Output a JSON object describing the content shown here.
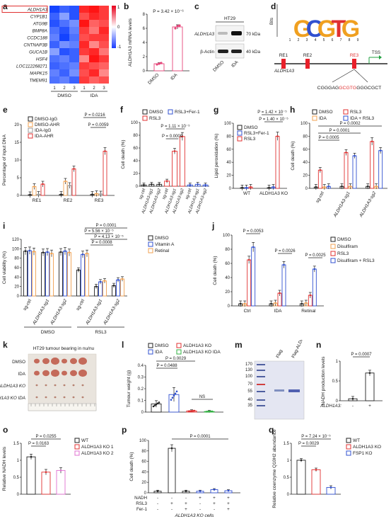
{
  "panel_letters": [
    "a",
    "b",
    "c",
    "d",
    "e",
    "f",
    "g",
    "h",
    "i",
    "j",
    "k",
    "l",
    "m",
    "n",
    "o",
    "p",
    "q"
  ],
  "chart_data": [
    {
      "panel": "a",
      "type": "heatmap",
      "rows": [
        "ALDH1A3",
        "CYP1B1",
        "ATG9B",
        "BMP8A",
        "CCDC188",
        "CNTNAP3B",
        "GUCA1B",
        "HSF4",
        "LOC112268271",
        "MAPK15",
        "TMEM91"
      ],
      "highlight_row": "ALDH1A3",
      "columns": [
        "1",
        "2",
        "3",
        "1",
        "2",
        "3"
      ],
      "groups": [
        "DMSO",
        "IDA"
      ],
      "colorbar_ticks": [
        "1",
        "0",
        "-1"
      ],
      "values": [
        [
          -1.2,
          -1.0,
          -1.1,
          1.1,
          1.2,
          1.0
        ],
        [
          -1.0,
          -0.6,
          -1.1,
          0.9,
          1.1,
          1.0
        ],
        [
          -1.1,
          -0.9,
          -0.7,
          1.2,
          0.8,
          0.9
        ],
        [
          -0.9,
          -1.1,
          -0.8,
          1.0,
          0.7,
          1.1
        ],
        [
          -0.8,
          -1.2,
          -0.9,
          0.9,
          1.0,
          1.0
        ],
        [
          -1.0,
          -0.7,
          -0.8,
          1.1,
          0.6,
          0.9
        ],
        [
          -0.6,
          -1.1,
          -1.0,
          1.0,
          1.1,
          0.7
        ],
        [
          -0.9,
          -0.8,
          -1.0,
          0.6,
          1.2,
          1.0
        ],
        [
          -1.0,
          -0.9,
          -0.8,
          1.0,
          0.9,
          0.8
        ],
        [
          -0.8,
          -1.0,
          -0.7,
          0.9,
          1.1,
          0.6
        ],
        [
          -0.9,
          -0.8,
          -1.0,
          1.0,
          0.8,
          0.9
        ]
      ]
    },
    {
      "panel": "b",
      "type": "bar",
      "ylabel": "ALDH1A3 mRNA levels",
      "categories": [
        "DMSO",
        "IDA"
      ],
      "values": [
        1.0,
        6.2
      ],
      "errors": [
        0.15,
        0.3
      ],
      "points": [
        [
          0.9,
          1.0,
          1.1
        ],
        [
          6.0,
          6.3,
          6.4
        ]
      ],
      "ylim": [
        0,
        8
      ],
      "yticks": [
        0,
        2,
        4,
        6,
        8
      ],
      "colors": [
        "#e8457a",
        "#e8457a"
      ],
      "annotation": "P = 3.42 × 10⁻⁶"
    },
    {
      "panel": "c",
      "type": "blot",
      "cell_line": "HT29",
      "rows": [
        "ALDH1A3",
        "β-Actin"
      ],
      "sizes": [
        "70 kDa",
        "40 kDa"
      ],
      "lanes": [
        "DMSO",
        "IDA"
      ]
    },
    {
      "panel": "d",
      "type": "motif",
      "motif_ylabel": "Bits",
      "motif_letters": [
        "G",
        "C",
        "G",
        "T",
        "G"
      ],
      "elements": [
        "RE1",
        "RE2",
        "RE3"
      ],
      "highlight_element": "RE3",
      "gene": "ALDH1A3",
      "tss": "TSS",
      "sequence_left": "CGGGAG",
      "sequence_motif": "GCGTG",
      "sequence_right": "GGGCGCT"
    },
    {
      "panel": "e",
      "type": "bar",
      "ylabel": "Percentage of input DNA",
      "categories": [
        "RE1",
        "RE2",
        "RE3"
      ],
      "series": [
        {
          "name": "DMSO-IgG",
          "color": "#222222",
          "values": [
            0.2,
            0.3,
            0.3
          ]
        },
        {
          "name": "DMSO-AHR",
          "color": "#f0a050",
          "values": [
            2.5,
            4.0,
            0.5
          ]
        },
        {
          "name": "IDA-IgG",
          "color": "#999999",
          "values": [
            0.3,
            2.8,
            0.4
          ]
        },
        {
          "name": "IDA-AHR",
          "color": "#e03030",
          "values": [
            3.2,
            7.5,
            12.5
          ]
        }
      ],
      "ylim": [
        0,
        20
      ],
      "yticks": [
        0,
        5,
        10,
        15,
        20
      ],
      "annotations": [
        "P = 0.0216",
        "P = 0.0059"
      ]
    },
    {
      "panel": "f",
      "type": "bar",
      "ylabel": "Cell death (%)",
      "categories": [
        "sg-ctrl",
        "ALDH1A3-sg1",
        "ALDH1A3-sg2",
        "sg-ctrl",
        "ALDH1A3-sg1",
        "ALDH1A3-sg2",
        "sg-ctrl",
        "ALDH1A3-sg1",
        "ALDH1A3-sg2"
      ],
      "legend": [
        "DMSO",
        "RSL3",
        "RSL3+Fer-1"
      ],
      "colors": [
        "#222222",
        "#e03030",
        "#3050d0"
      ],
      "values": [
        2,
        3,
        3,
        8,
        55,
        78,
        2,
        3,
        2
      ],
      "ylim": [
        0,
        100
      ],
      "yticks": [
        0,
        20,
        40,
        60,
        80,
        100
      ],
      "annotations": [
        "P = 1.11 × 10⁻⁵",
        "P = 0.0009"
      ]
    },
    {
      "panel": "g",
      "type": "bar",
      "ylabel": "Lipid peroxidation (%)",
      "categories": [
        "WT",
        "ALDH1A3 KO"
      ],
      "series": [
        {
          "name": "DMSO",
          "color": "#222222",
          "values": [
            1,
            1
          ]
        },
        {
          "name": "RSL3+Fer-1",
          "color": "#3050d0",
          "values": [
            1,
            2
          ]
        },
        {
          "name": "RSL3",
          "color": "#e03030",
          "values": [
            2,
            80
          ]
        }
      ],
      "ylim": [
        0,
        100
      ],
      "yticks": [
        0,
        20,
        40,
        60,
        80,
        100
      ],
      "annotations": [
        "P = 1.42 × 10⁻⁵",
        "P = 1.40 × 10⁻⁵"
      ]
    },
    {
      "panel": "h",
      "type": "bar",
      "ylabel": "Cell death (%)",
      "categories": [
        "sg-ctrl",
        "ALDH1A3-sg1",
        "ALDH1A3-sg2"
      ],
      "series": [
        {
          "name": "DMSO",
          "color": "#222222",
          "values": [
            2,
            3,
            3
          ]
        },
        {
          "name": "RSL3",
          "color": "#e03030",
          "values": [
            28,
            55,
            72
          ]
        },
        {
          "name": "IDA",
          "color": "#f0a050",
          "values": [
            2,
            3,
            3
          ]
        },
        {
          "name": "IDA + RSL3",
          "color": "#3050d0",
          "values": [
            3,
            50,
            58
          ]
        }
      ],
      "ylim": [
        0,
        100
      ],
      "yticks": [
        0,
        20,
        40,
        60,
        80,
        100
      ],
      "annotations": [
        "P = 0.0005",
        "P = 0.0001",
        "P = 0.0002"
      ]
    },
    {
      "panel": "i",
      "type": "bar",
      "ylabel": "Cell viability (%)",
      "categories": [
        "sg-ctrl",
        "ALDH1A3-sg1",
        "ALDH1A3-sg2",
        "sg-ctrl",
        "ALDH1A3-sg1",
        "ALDH1A3-sg2"
      ],
      "groups": [
        "DMSO",
        "RSL3"
      ],
      "series": [
        {
          "name": "DMSO",
          "color": "#222222",
          "values": [
            95,
            92,
            93,
            55,
            20,
            22
          ]
        },
        {
          "name": "Vitamin A",
          "color": "#3050d0",
          "values": [
            96,
            93,
            95,
            88,
            30,
            34
          ]
        },
        {
          "name": "Retinal",
          "color": "#f0a050",
          "values": [
            94,
            90,
            92,
            90,
            32,
            36
          ]
        }
      ],
      "ylim": [
        0,
        120
      ],
      "yticks": [
        0,
        20,
        40,
        60,
        80,
        100,
        120
      ],
      "annotations": [
        "P = 0.0001",
        "P = 5.56 × 10⁻⁵",
        "P = 4.13 × 10⁻⁵",
        "P = 0.0008"
      ]
    },
    {
      "panel": "j",
      "type": "bar",
      "ylabel": "Cell death (%)",
      "categories": [
        "Ctrl",
        "IDA",
        "Retinal"
      ],
      "series": [
        {
          "name": "DMSO",
          "color": "#222222",
          "values": [
            3,
            3,
            3
          ]
        },
        {
          "name": "Disulfiram",
          "color": "#f0a050",
          "values": [
            3,
            4,
            4
          ]
        },
        {
          "name": "RSL3",
          "color": "#e03030",
          "values": [
            65,
            18,
            15
          ]
        },
        {
          "name": "Disulfiram + RSL3",
          "color": "#3050d0",
          "values": [
            83,
            58,
            52
          ]
        }
      ],
      "ylim": [
        0,
        100
      ],
      "yticks": [
        0,
        20,
        40,
        60,
        80,
        100
      ],
      "annotations": [
        "P = 0.0053",
        "P = 0.0026",
        "P = 0.0025"
      ]
    },
    {
      "panel": "k",
      "type": "photo",
      "title": "HT29 tumour bearing in nu/nu",
      "rows": [
        "DMSO",
        "IDA",
        "ALDH1A3 KO",
        "ALDH1A3 KO IDA"
      ]
    },
    {
      "panel": "l",
      "type": "bar",
      "ylabel": "Tumour weight (g)",
      "categories": [
        "DMSO",
        "IDA",
        "ALDH1A3 KO",
        "ALDH1A3 KO IDA"
      ],
      "legend": [
        "DMSO",
        "ALDH1A3 KO",
        "IDA",
        "ALDH1A3 KO IDA"
      ],
      "colors": [
        "#222222",
        "#e03030",
        "#3050d0",
        "#30b040"
      ],
      "values": [
        0.07,
        0.15,
        0.01,
        0.005
      ],
      "ylim": [
        0,
        0.4
      ],
      "yticks": [
        0,
        0.1,
        0.2,
        0.3,
        0.4
      ],
      "annotations": [
        "P = 0.0029",
        "P = 0.0488",
        "NS"
      ]
    },
    {
      "panel": "m",
      "type": "gel",
      "lanes": [
        "Flag",
        "Flag-ALDH1A3"
      ],
      "markers": [
        "170",
        "130",
        "100",
        "70",
        "55",
        "40",
        "35"
      ]
    },
    {
      "panel": "n",
      "type": "bar",
      "ylabel": "NADH production levels",
      "categories": [
        "-",
        "+"
      ],
      "xlabel": "ALDH1A3:",
      "values": [
        0.05,
        0.7
      ],
      "ylim": [
        0,
        1.0
      ],
      "yticks": [
        0,
        0.5,
        1.0
      ],
      "annotation": "P = 0.0007"
    },
    {
      "panel": "o",
      "type": "bar",
      "ylabel": "Relative NADH levels",
      "categories": [
        "WT",
        "ALDH1A3 KO 1",
        "ALDH1A3 KO 2"
      ],
      "colors": [
        "#222222",
        "#e03030",
        "#e070d0"
      ],
      "values": [
        1.1,
        0.65,
        0.7
      ],
      "ylim": [
        0,
        1.5
      ],
      "yticks": [
        0,
        0.5,
        1.0,
        1.5
      ],
      "annotations": [
        "P = 0.0255",
        "P = 0.0163"
      ]
    },
    {
      "panel": "p",
      "type": "bar",
      "ylabel": "Cell death (%)",
      "xlabel": "ALDH1A3 KO cells",
      "row_labels": [
        "NADH",
        "RSL3",
        "Fer-1"
      ],
      "conditions": [
        [
          "-",
          "-",
          "-"
        ],
        [
          "-",
          "+",
          "-"
        ],
        [
          "-",
          "+",
          "+"
        ],
        [
          "+",
          "-",
          "-"
        ],
        [
          "+",
          "+",
          "-"
        ],
        [
          "+",
          "+",
          "+"
        ]
      ],
      "values": [
        3,
        85,
        3,
        3,
        6,
        4
      ],
      "ylim": [
        0,
        100
      ],
      "yticks": [
        0,
        20,
        40,
        60,
        80,
        100
      ],
      "annotation": "P = 0.0001"
    },
    {
      "panel": "q",
      "type": "bar",
      "ylabel": "Relative coenzyme Q10H2 abundance",
      "categories": [
        "WT",
        "ALDH1A3 KO",
        "FSP1 KO"
      ],
      "colors": [
        "#222222",
        "#e03030",
        "#3050d0"
      ],
      "values": [
        1.0,
        0.72,
        0.2
      ],
      "ylim": [
        0,
        1.5
      ],
      "yticks": [
        0,
        0.5,
        1.0,
        1.5
      ],
      "annotations": [
        "P = 7.24 × 10⁻⁵",
        "P = 0.0029"
      ]
    }
  ]
}
